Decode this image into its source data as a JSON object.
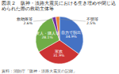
{
  "chart_data": {
    "type": "pie",
    "title": "図表２　阪神・淡路大震災における生き埋めや閉じ込められた際の救助主体等",
    "annotations": [
      "資料：消防庁「阪神・淡路大震災の記録」"
    ],
    "categories": [
      "自力で脱出",
      "家族",
      "友人・隣人等",
      "救助隊等",
      "不明等"
    ],
    "values": [
      34.9,
      31.9,
      28.1,
      2.6,
      2.5
    ],
    "value_labels": [
      "34.9%",
      "31.9%",
      "28.1%",
      "2.6%",
      "2.5%"
    ],
    "colors": [
      "#4472c4",
      "#cc3333",
      "#70ad47",
      "#7030a0",
      "#ed7d31"
    ],
    "data_labels": true
  }
}
